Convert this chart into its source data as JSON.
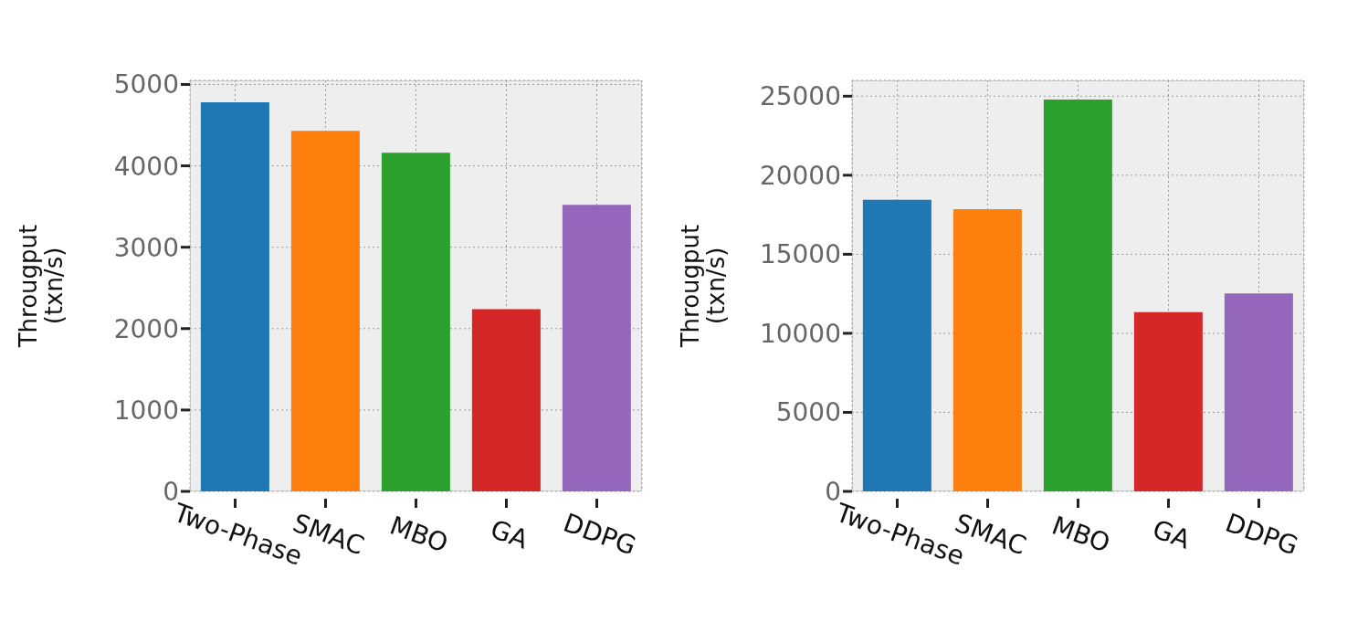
{
  "chart_data": [
    {
      "type": "bar",
      "categories": [
        "Two-Phase",
        "SMAC",
        "MBO",
        "GA",
        "DDPG"
      ],
      "values": [
        4780,
        4430,
        4160,
        2240,
        3520
      ],
      "colors": [
        "#1f77b4",
        "#ff7f0e",
        "#2ca02c",
        "#d62728",
        "#9467bd"
      ],
      "ylabel": "Througput\n(txn/s)",
      "ylim": [
        0,
        5050
      ],
      "yticks": [
        0,
        1000,
        2000,
        3000,
        4000,
        5000
      ],
      "grid": true
    },
    {
      "type": "bar",
      "categories": [
        "Two-Phase",
        "SMAC",
        "MBO",
        "GA",
        "DDPG"
      ],
      "values": [
        18440,
        17850,
        24790,
        11340,
        12530
      ],
      "colors": [
        "#1f77b4",
        "#ff7f0e",
        "#2ca02c",
        "#d62728",
        "#9467bd"
      ],
      "ylabel": "Througput\n(txn/s)",
      "ylim": [
        0,
        26000
      ],
      "yticks": [
        0,
        5000,
        10000,
        15000,
        20000,
        25000
      ],
      "grid": true
    }
  ]
}
